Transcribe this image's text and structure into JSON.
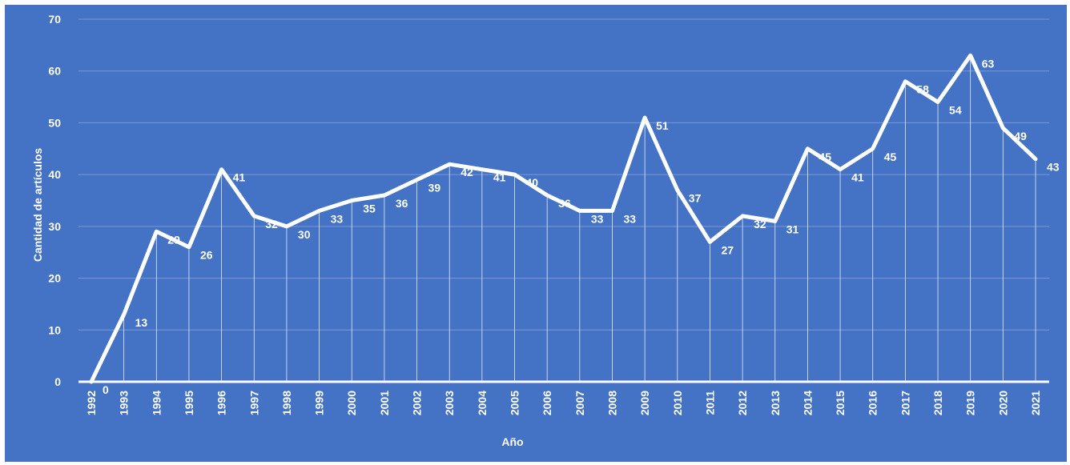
{
  "chart_data": {
    "type": "line",
    "title": "",
    "xlabel": "Año",
    "ylabel": "Cantidad de artículos",
    "ylim": [
      0,
      70
    ],
    "yticks": [
      "0",
      "10",
      "20",
      "30",
      "40",
      "50",
      "60",
      "70"
    ],
    "grid": true,
    "legend": "none",
    "categories": [
      "1992",
      "1993",
      "1994",
      "1995",
      "1996",
      "1997",
      "1998",
      "1999",
      "2000",
      "2001",
      "2002",
      "2003",
      "2004",
      "2005",
      "2006",
      "2007",
      "2008",
      "2009",
      "2010",
      "2011",
      "2012",
      "2013",
      "2014",
      "2015",
      "2016",
      "2017",
      "2018",
      "2019",
      "2020",
      "2021"
    ],
    "series": [
      {
        "values": [
          0,
          13,
          29,
          26,
          41,
          32,
          30,
          33,
          35,
          36,
          39,
          42,
          41,
          40,
          36,
          33,
          33,
          51,
          37,
          27,
          32,
          31,
          45,
          41,
          45,
          58,
          54,
          63,
          49,
          43
        ]
      }
    ],
    "colors": {
      "background": "#4472C4",
      "line": "#ffffff",
      "grid": "#7a9ad6",
      "text": "#ffffff"
    }
  }
}
